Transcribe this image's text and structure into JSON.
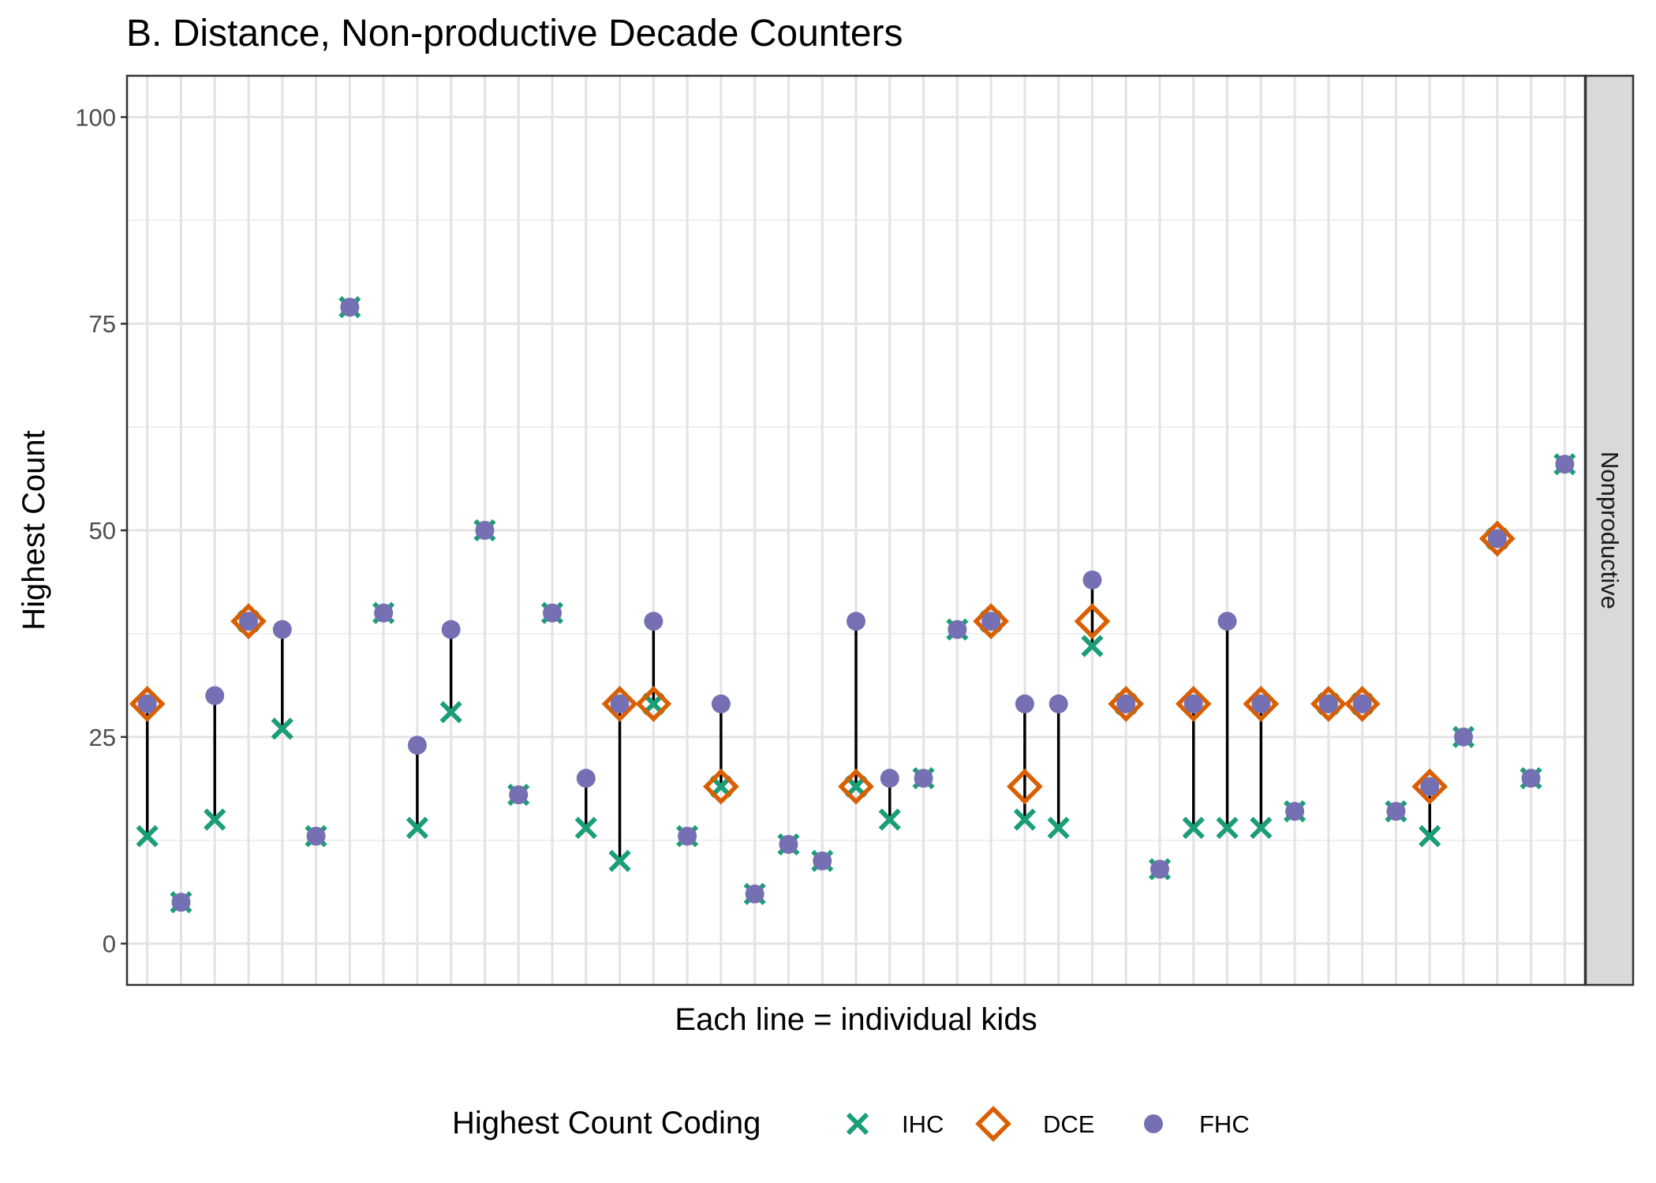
{
  "chart_data": {
    "type": "scatter",
    "title": "B. Distance, Non-productive Decade Counters",
    "xlabel": "Each line = individual kids",
    "ylabel": "Highest Count",
    "ylim": [
      -5,
      105
    ],
    "yticks": [
      0,
      25,
      50,
      75,
      100
    ],
    "facet_label": "Nonproductive",
    "legend": {
      "title": "Highest Count Coding",
      "position": "bottom",
      "items": [
        {
          "key": "IHC",
          "label": "IHC",
          "shape": "x",
          "color": "#1b9e77"
        },
        {
          "key": "DCE",
          "label": "DCE",
          "shape": "diamond-open",
          "color": "#d95f02"
        },
        {
          "key": "FHC",
          "label": "FHC",
          "shape": "circle",
          "color": "#7570b3"
        }
      ]
    },
    "grid": true,
    "kids": [
      {
        "ihc": 13,
        "dce": 29,
        "fhc": 29
      },
      {
        "ihc": 5,
        "dce": null,
        "fhc": 5
      },
      {
        "ihc": 15,
        "dce": null,
        "fhc": 30
      },
      {
        "ihc": 39,
        "dce": 39,
        "fhc": 39
      },
      {
        "ihc": 26,
        "dce": null,
        "fhc": 38
      },
      {
        "ihc": 13,
        "dce": null,
        "fhc": 13
      },
      {
        "ihc": 77,
        "dce": null,
        "fhc": 77
      },
      {
        "ihc": 40,
        "dce": null,
        "fhc": 40
      },
      {
        "ihc": 14,
        "dce": null,
        "fhc": 24
      },
      {
        "ihc": 28,
        "dce": null,
        "fhc": 38
      },
      {
        "ihc": 50,
        "dce": null,
        "fhc": 50
      },
      {
        "ihc": 18,
        "dce": null,
        "fhc": 18
      },
      {
        "ihc": 40,
        "dce": null,
        "fhc": 40
      },
      {
        "ihc": 14,
        "dce": null,
        "fhc": 20
      },
      {
        "ihc": 10,
        "dce": 29,
        "fhc": 29
      },
      {
        "ihc": 29,
        "dce": 29,
        "fhc": 39
      },
      {
        "ihc": 13,
        "dce": null,
        "fhc": 13
      },
      {
        "ihc": 19,
        "dce": 19,
        "fhc": 29
      },
      {
        "ihc": 6,
        "dce": null,
        "fhc": 6
      },
      {
        "ihc": 12,
        "dce": null,
        "fhc": 12
      },
      {
        "ihc": 10,
        "dce": null,
        "fhc": 10
      },
      {
        "ihc": 19,
        "dce": 19,
        "fhc": 39
      },
      {
        "ihc": 15,
        "dce": null,
        "fhc": 20
      },
      {
        "ihc": 20,
        "dce": null,
        "fhc": 20
      },
      {
        "ihc": 38,
        "dce": null,
        "fhc": 38
      },
      {
        "ihc": 39,
        "dce": 39,
        "fhc": 39
      },
      {
        "ihc": 15,
        "dce": 19,
        "fhc": 29
      },
      {
        "ihc": 14,
        "dce": null,
        "fhc": 29
      },
      {
        "ihc": 36,
        "dce": 39,
        "fhc": 44
      },
      {
        "ihc": 29,
        "dce": 29,
        "fhc": 29
      },
      {
        "ihc": 9,
        "dce": null,
        "fhc": 9
      },
      {
        "ihc": 14,
        "dce": 29,
        "fhc": 29
      },
      {
        "ihc": 14,
        "dce": null,
        "fhc": 39
      },
      {
        "ihc": 14,
        "dce": 29,
        "fhc": 29
      },
      {
        "ihc": 16,
        "dce": null,
        "fhc": 16
      },
      {
        "ihc": 29,
        "dce": 29,
        "fhc": 29
      },
      {
        "ihc": 29,
        "dce": 29,
        "fhc": 29
      },
      {
        "ihc": 16,
        "dce": null,
        "fhc": 16
      },
      {
        "ihc": 13,
        "dce": 19,
        "fhc": 19
      },
      {
        "ihc": 25,
        "dce": null,
        "fhc": 25
      },
      {
        "ihc": 49,
        "dce": 49,
        "fhc": 49
      },
      {
        "ihc": 20,
        "dce": null,
        "fhc": 20
      },
      {
        "ihc": 58,
        "dce": null,
        "fhc": 58
      }
    ]
  }
}
